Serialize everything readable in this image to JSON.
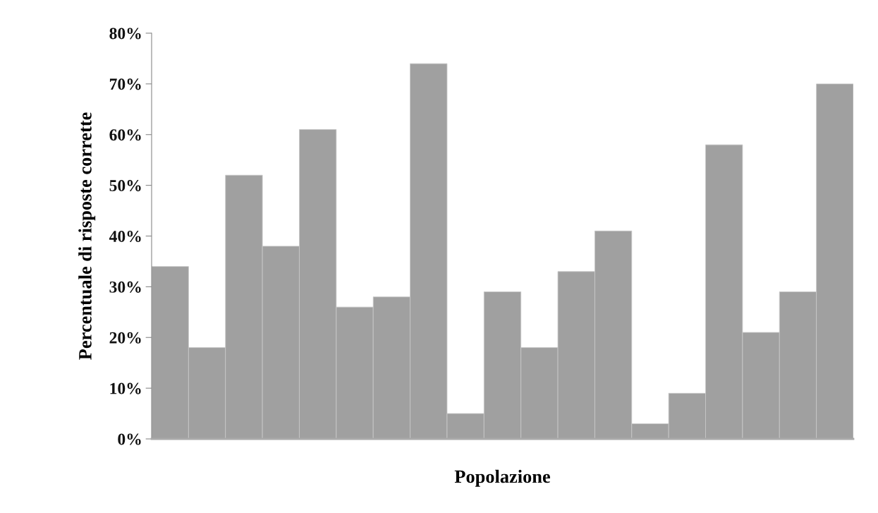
{
  "chart_data": {
    "type": "bar",
    "xlabel": "Popolazione",
    "ylabel": "Percentuale di risposte corrette",
    "categories": [
      null,
      null,
      null,
      null,
      null,
      null,
      null,
      null,
      null,
      null,
      null,
      null,
      null,
      null,
      null,
      null,
      null,
      null,
      null
    ],
    "values": [
      34,
      18,
      52,
      38,
      61,
      26,
      28,
      74,
      5,
      29,
      18,
      33,
      41,
      3,
      9,
      58,
      21,
      29,
      70
    ],
    "color": "#a0a0a0",
    "ylim": [
      0,
      80
    ],
    "yticks": [
      {
        "value": 0,
        "label": "0%"
      },
      {
        "value": 10,
        "label": "10%"
      },
      {
        "value": 20,
        "label": "20%"
      },
      {
        "value": 30,
        "label": "30%"
      },
      {
        "value": 40,
        "label": "40%"
      },
      {
        "value": 50,
        "label": "50%"
      },
      {
        "value": 60,
        "label": "60%"
      },
      {
        "value": 70,
        "label": "70%"
      },
      {
        "value": 80,
        "label": "80%"
      }
    ],
    "grid": false,
    "legend": false
  }
}
